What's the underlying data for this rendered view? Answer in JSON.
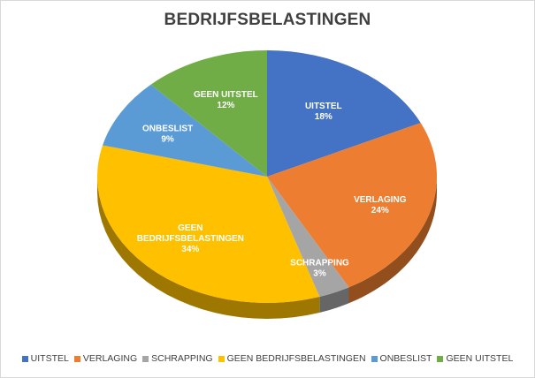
{
  "chart_data": {
    "type": "pie",
    "title": "BEDRIJFSBELASTINGEN",
    "categories": [
      "UITSTEL",
      "VERLAGING",
      "SCHRAPPING",
      "GEEN BEDRIJFSBELASTINGEN",
      "ONBESLIST",
      "GEEN UITSTEL"
    ],
    "values": [
      18,
      24,
      3,
      34,
      9,
      12
    ],
    "value_labels": [
      "18%",
      "24%",
      "3%",
      "34%",
      "9%",
      "12%"
    ],
    "slice_label_lines": [
      [
        "UITSTEL"
      ],
      [
        "VERLAGING"
      ],
      [
        "SCHRAPPING"
      ],
      [
        "GEEN",
        "BEDRIJFSBELASTINGEN"
      ],
      [
        "ONBESLIST"
      ],
      [
        "GEEN UITSTEL"
      ]
    ],
    "colors": [
      "#4472c4",
      "#ed7d31",
      "#a5a5a5",
      "#ffc000",
      "#5b9bd5",
      "#70ad47"
    ],
    "legend": "bottom",
    "style": "3d-tilted"
  }
}
